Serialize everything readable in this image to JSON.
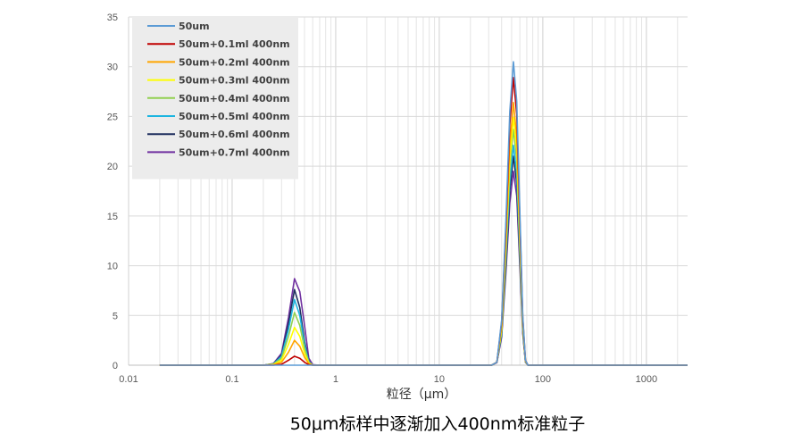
{
  "chart_data": {
    "type": "line",
    "x_scale": "log",
    "xlim": [
      0.01,
      2500
    ],
    "ylim": [
      0,
      35
    ],
    "x_ticks": [
      "0.01",
      "0.1",
      "1",
      "10",
      "100",
      "1000"
    ],
    "y_ticks": [
      "0",
      "5",
      "10",
      "15",
      "20",
      "25",
      "30",
      "35"
    ],
    "xlabel": "粒径（μm）",
    "caption": "50μm标样中逐渐加入400nm标准粒子",
    "grid": "minor-log-vertical, major-horizontal",
    "legend_position": "top-left",
    "x": [
      0.02,
      0.2,
      0.25,
      0.3,
      0.35,
      0.4,
      0.45,
      0.5,
      0.55,
      0.6,
      0.7,
      1,
      10,
      32,
      36,
      40,
      44,
      48,
      52,
      56,
      60,
      64,
      68,
      72,
      75,
      1000,
      2500
    ],
    "series": [
      {
        "name": "50um",
        "color": "#5B9BD5",
        "values": [
          0,
          0,
          0,
          0,
          0,
          0,
          0,
          0,
          0,
          0,
          0,
          0,
          0,
          0,
          0.3,
          4.5,
          14.5,
          25.5,
          30.5,
          26.5,
          15.5,
          5,
          0.5,
          0,
          0,
          0,
          0
        ]
      },
      {
        "name": "50um+0.1ml 400nm",
        "color": "#C00000",
        "values": [
          0,
          0,
          0,
          0.1,
          0.5,
          0.9,
          0.7,
          0.3,
          0.05,
          0,
          0,
          0,
          0,
          0,
          0.3,
          4.3,
          13.8,
          24.2,
          28.9,
          25.2,
          14.7,
          4.8,
          0.5,
          0,
          0,
          0,
          0
        ]
      },
      {
        "name": "50um+0.2ml 400nm",
        "color": "#FFA500",
        "values": [
          0,
          0,
          0.05,
          0.3,
          1.3,
          2.5,
          1.9,
          0.8,
          0.15,
          0,
          0,
          0,
          0,
          0,
          0.3,
          3.9,
          12.6,
          22.1,
          26.4,
          23.0,
          13.4,
          4.3,
          0.4,
          0,
          0,
          0,
          0
        ]
      },
      {
        "name": "50um+0.3ml 400nm",
        "color": "#FFFF00",
        "values": [
          0,
          0,
          0.08,
          0.5,
          2.1,
          3.8,
          2.9,
          1.2,
          0.2,
          0,
          0,
          0,
          0,
          0,
          0.3,
          3.6,
          11.9,
          20.8,
          24.9,
          21.7,
          12.6,
          4.1,
          0.4,
          0,
          0,
          0,
          0
        ]
      },
      {
        "name": "50um+0.4ml 400nm",
        "color": "#92D050",
        "values": [
          0,
          0,
          0.1,
          0.7,
          2.9,
          5.3,
          4.0,
          1.7,
          0.3,
          0,
          0,
          0,
          0,
          0,
          0.3,
          3.4,
          11.3,
          19.8,
          23.7,
          20.6,
          12.0,
          3.9,
          0.4,
          0,
          0,
          0,
          0
        ]
      },
      {
        "name": "50um+0.5ml 400nm",
        "color": "#1CB5E0",
        "values": [
          0,
          0,
          0.12,
          0.9,
          3.6,
          6.6,
          5.0,
          2.1,
          0.35,
          0,
          0,
          0,
          0,
          0,
          0.3,
          3.2,
          10.6,
          18.5,
          22.1,
          19.3,
          11.2,
          3.6,
          0.35,
          0,
          0,
          0,
          0
        ]
      },
      {
        "name": "50um+0.6ml 400nm",
        "color": "#1F2F5E",
        "values": [
          0,
          0,
          0.14,
          1.0,
          4.2,
          7.6,
          5.8,
          2.4,
          0.4,
          0,
          0,
          0,
          0,
          0,
          0.3,
          3.0,
          10.0,
          17.5,
          21.0,
          18.3,
          10.6,
          3.4,
          0.3,
          0,
          0,
          0,
          0
        ]
      },
      {
        "name": "50um+0.7ml 400nm",
        "color": "#7030A0",
        "values": [
          0,
          0,
          0.16,
          1.2,
          4.8,
          8.7,
          7.4,
          4.0,
          0.7,
          0.05,
          0,
          0,
          0,
          0,
          0.25,
          2.8,
          9.3,
          16.3,
          19.5,
          17.0,
          9.9,
          3.2,
          0.3,
          0,
          0,
          0,
          0
        ]
      }
    ]
  }
}
